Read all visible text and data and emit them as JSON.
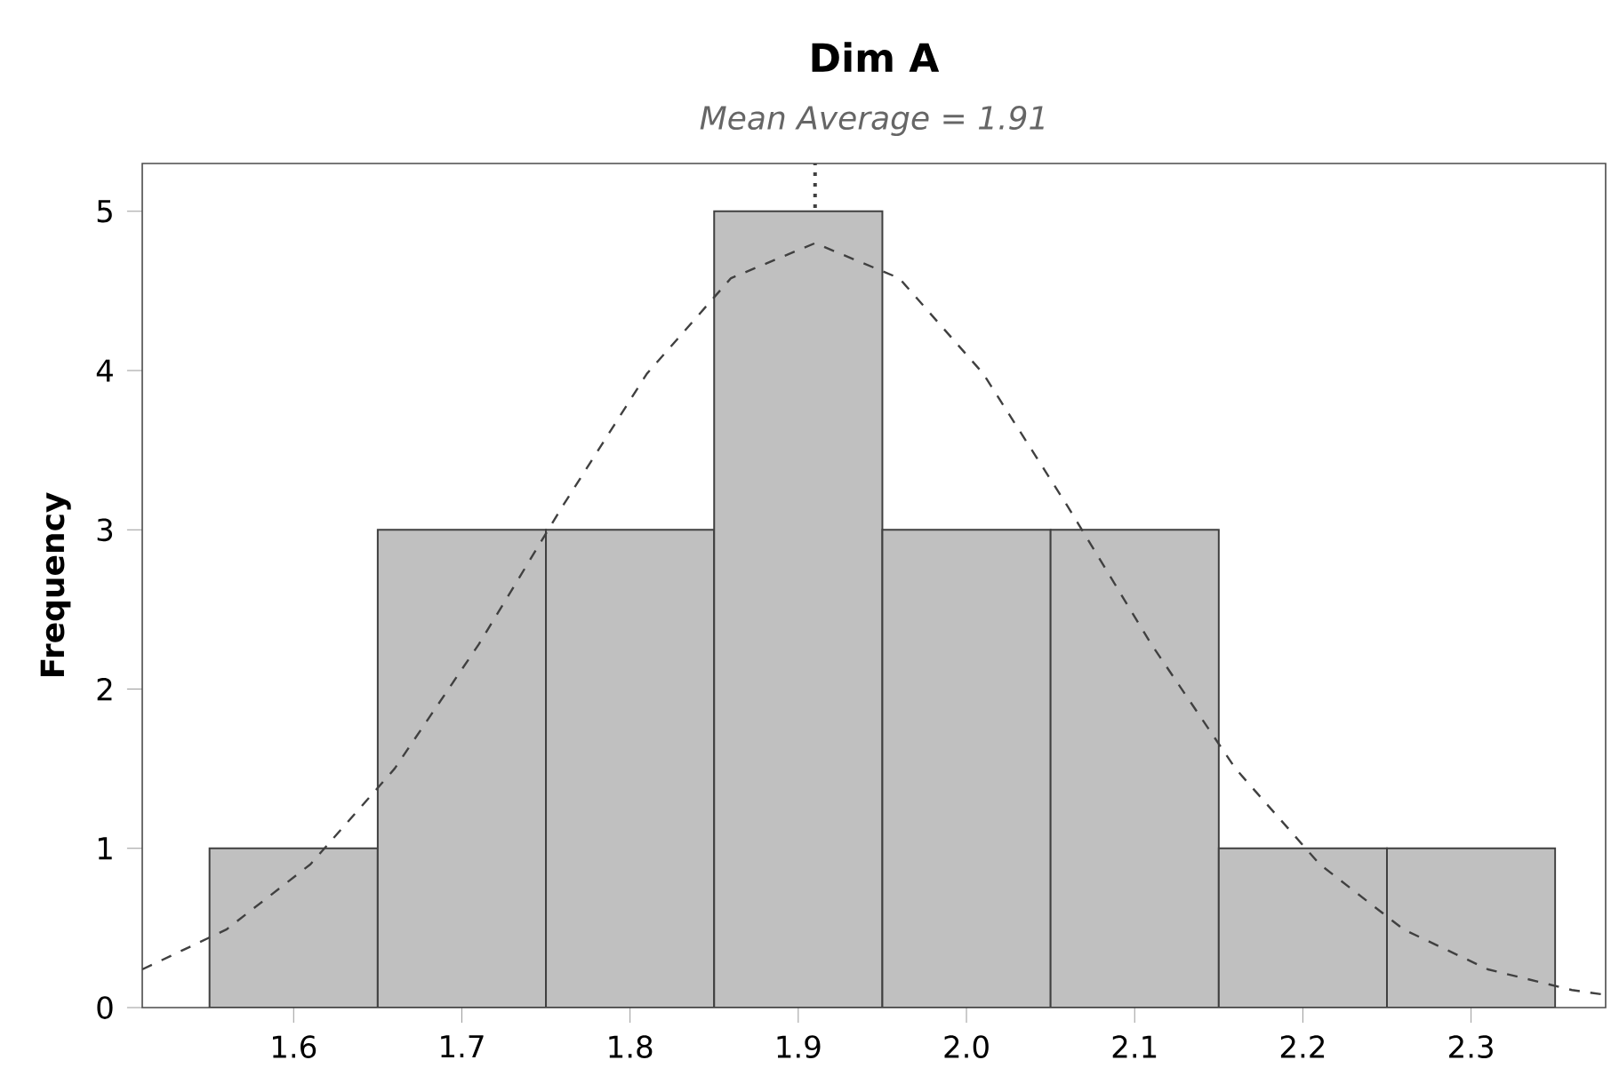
{
  "chart_data": {
    "type": "histogram",
    "title": "Dim A",
    "subtitle": "*Mean Average = 1.91*",
    "ylabel": "Frequency",
    "bins": [
      1.55,
      1.65,
      1.75,
      1.85,
      1.95,
      2.05,
      2.15,
      2.25,
      2.35
    ],
    "values": [
      1,
      3,
      3,
      5,
      3,
      3,
      1,
      1
    ],
    "color": "#c0c0c0",
    "series": [
      {
        "type": "line",
        "color": "#404040",
        "line_style": "dashed",
        "x": [
          1.51,
          1.56,
          1.61,
          1.66,
          1.71,
          1.76,
          1.81,
          1.86,
          1.91,
          1.96,
          2.01,
          2.06,
          2.11,
          2.16,
          2.21,
          2.26,
          2.31,
          2.36,
          2.38
        ],
        "values": [
          0.24,
          0.49,
          0.9,
          1.5,
          2.28,
          3.15,
          3.98,
          4.58,
          4.8,
          4.58,
          3.98,
          3.15,
          2.28,
          1.5,
          0.9,
          0.49,
          0.24,
          0.11,
          0.08
        ]
      }
    ],
    "ref_lines": [
      {
        "axis": "x",
        "value": 1.91,
        "color": "#404040",
        "line_style": "dotted"
      }
    ],
    "xlim": [
      1.51,
      2.38
    ],
    "ylim": [
      0,
      5.3
    ],
    "xticks": [
      1.6,
      1.7,
      1.8,
      1.9,
      {
        "value": 2.0,
        "label": "2.0"
      },
      2.1,
      2.2,
      2.3
    ],
    "yticks": [
      0,
      1,
      2,
      3,
      4,
      5
    ],
    "grid": false
  }
}
